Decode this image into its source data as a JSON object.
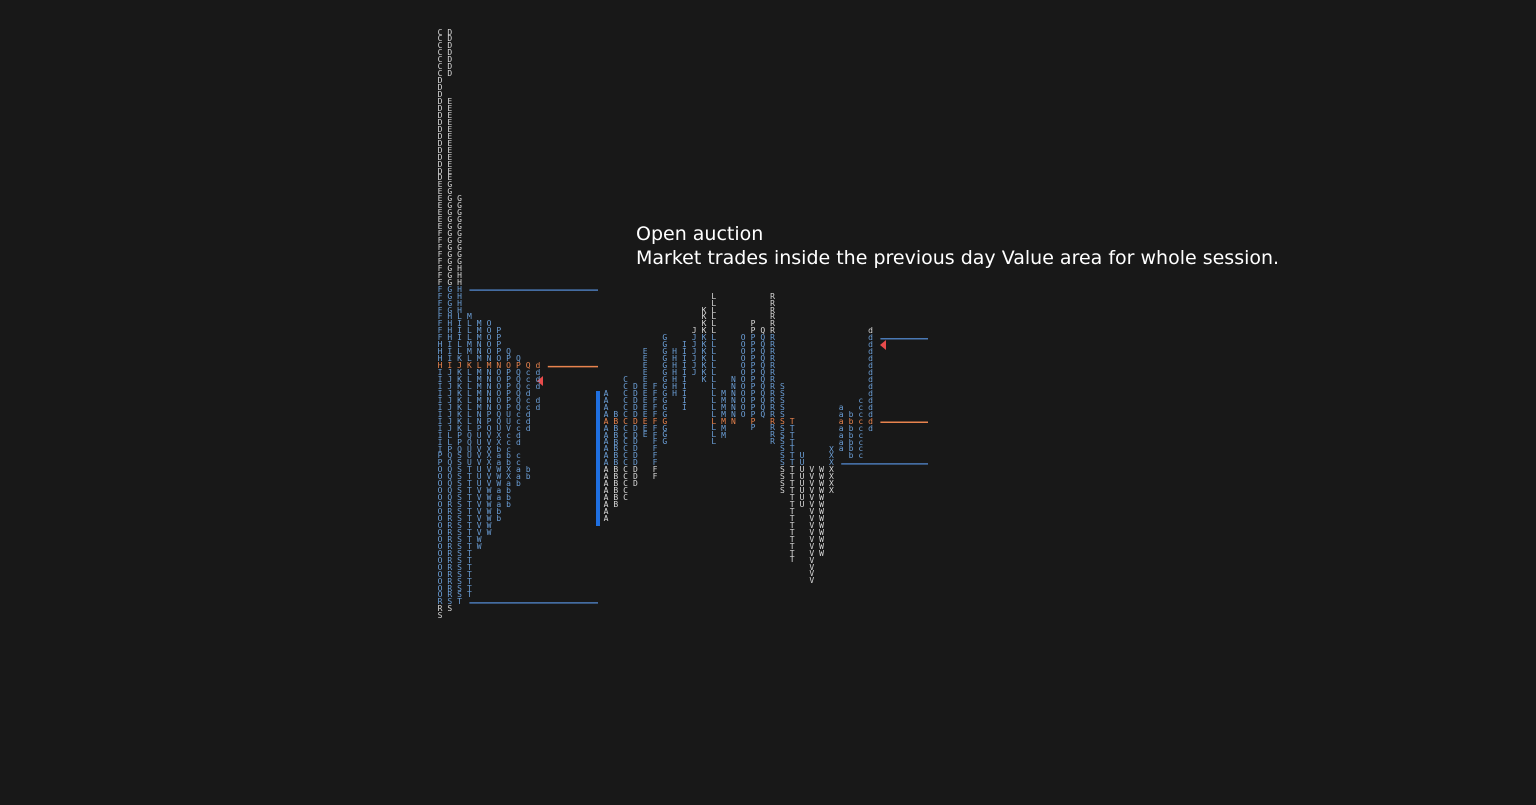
{
  "annotation": {
    "title": "Open auction",
    "text": "Market trades inside the previous day Value area for whole session."
  },
  "colors": {
    "value_area": "#6b9ed6",
    "outside": "#d9d9d9",
    "poc": "#e8834e",
    "va_line": "#4a79b5"
  },
  "profiles": [
    {
      "type": "rows",
      "top": 0,
      "value_area": [
        37,
        82
      ],
      "poc": 48,
      "rows": [
        "CD",
        "CD",
        "CD",
        "CD",
        "CD",
        "CD",
        "CD",
        "D",
        "D",
        "D",
        "DE",
        "DE",
        "DE",
        "DE",
        "DE",
        "DE",
        "DE",
        "DE",
        "DE",
        "DE",
        "DE",
        "DE",
        "EG",
        "EG",
        "EGG",
        "EGG",
        "EGG",
        "EGG",
        "EGG",
        "FGG",
        "FGG",
        "FGG",
        "FGG",
        "FGG",
        "FGH",
        "FGH",
        "FGH",
        "FGH",
        "FGH",
        "FGH",
        "FGH",
        "FHLM",
        "FHILMO",
        "FHILMOP",
        "FHILMOP",
        "HILMNOP",
        "HILMNOPQ",
        "HIKLMNOPQ",
        "HIJKLMNOPQd",
        "IJKLMNOPQcd",
        "IJKLMNOPQcd",
        "IJKLMNOPQcd",
        "IJKLMNOPQd",
        "IJKLMNOPQcd",
        "IJKLMNOPQcd",
        "IJKLNPQUcd",
        "IJKLNPQUcd",
        "IJKLPQUVcd",
        "ILPQUVXcd",
        "ILPQUVXcd",
        "IPQUVXbc",
        "PQSUVXabc",
        "PQSUVXabc",
        "OQSTUVWXab",
        "OQSTUVWXab",
        "OQSTUVWab",
        "OQSTVWab",
        "OQSTVWab",
        "ORSTVWab",
        "ORSTVWb",
        "ORSTVWb",
        "ORSTVW",
        "ORSTVW",
        "ORSTW",
        "ORSTW",
        "ORST",
        "ORST",
        "ORST",
        "ORST",
        "ORST",
        "ORST",
        "ORST",
        "RST",
        "RS",
        "S"
      ]
    },
    {
      "type": "columns",
      "value_area": [
        44,
        62
      ],
      "poc": 56,
      "columns": [
        {
          "top": 52,
          "letters": "AAAAAAAAAAAAAAAAAAA"
        },
        {
          "top": 55,
          "letters": "BBBBBBBBBBBBBB"
        },
        {
          "top": 50,
          "letters": "CCCCCCCCCCCCCCCCCC"
        },
        {
          "top": 51,
          "letters": "DDDDDDDDDDDDDDD"
        },
        {
          "top": 46,
          "letters": "EEEEEEEEEEEEE"
        },
        {
          "top": 51,
          "letters": "FFFFFFFFFFFFFF"
        },
        {
          "top": 44,
          "letters": "GGGGGGGGGGGGGGGG"
        },
        {
          "top": 46,
          "letters": "HHHHHHH"
        },
        {
          "top": 45,
          "letters": "IIIIIIIIII"
        },
        {
          "top": 43,
          "letters": "JJJJJJJ"
        },
        {
          "top": 40,
          "letters": "KKKKKKKKKKK"
        },
        {
          "top": 38,
          "letters": "LLLLLLLLLLLLLLLLLLLLLL"
        },
        {
          "top": 52,
          "letters": "MMMMMMM"
        },
        {
          "top": 50,
          "letters": "NNNNNNN"
        },
        {
          "top": 44,
          "letters": "OOOOOOOOOOOO"
        },
        {
          "top": 42,
          "letters": "PPPPPPPPPPPPPPPP"
        },
        {
          "top": 43,
          "letters": "QQQQQQQQQQQQQ"
        },
        {
          "top": 38,
          "letters": "RRRRRRRRRRRRRRRRRRRRRR"
        },
        {
          "top": 51,
          "letters": "SSSSSSSSSSSSSSSS"
        },
        {
          "top": 56,
          "letters": "TTTTTTTTTTTTTTTTTTTTT"
        },
        {
          "top": 61,
          "letters": "UUUUUUUU"
        },
        {
          "top": 63,
          "letters": "VVVVVVVVVVVVVVVVV"
        },
        {
          "top": 63,
          "letters": "WWWWWWWWWWWWW"
        },
        {
          "top": 60,
          "letters": "XXXXXXX"
        },
        {
          "top": 54,
          "letters": "aaaaaaa"
        },
        {
          "top": 55,
          "letters": "bbbbbbb"
        },
        {
          "top": 53,
          "letters": "ccccccccc"
        },
        {
          "top": 43,
          "letters": "ddddddddddddddd"
        }
      ]
    }
  ]
}
